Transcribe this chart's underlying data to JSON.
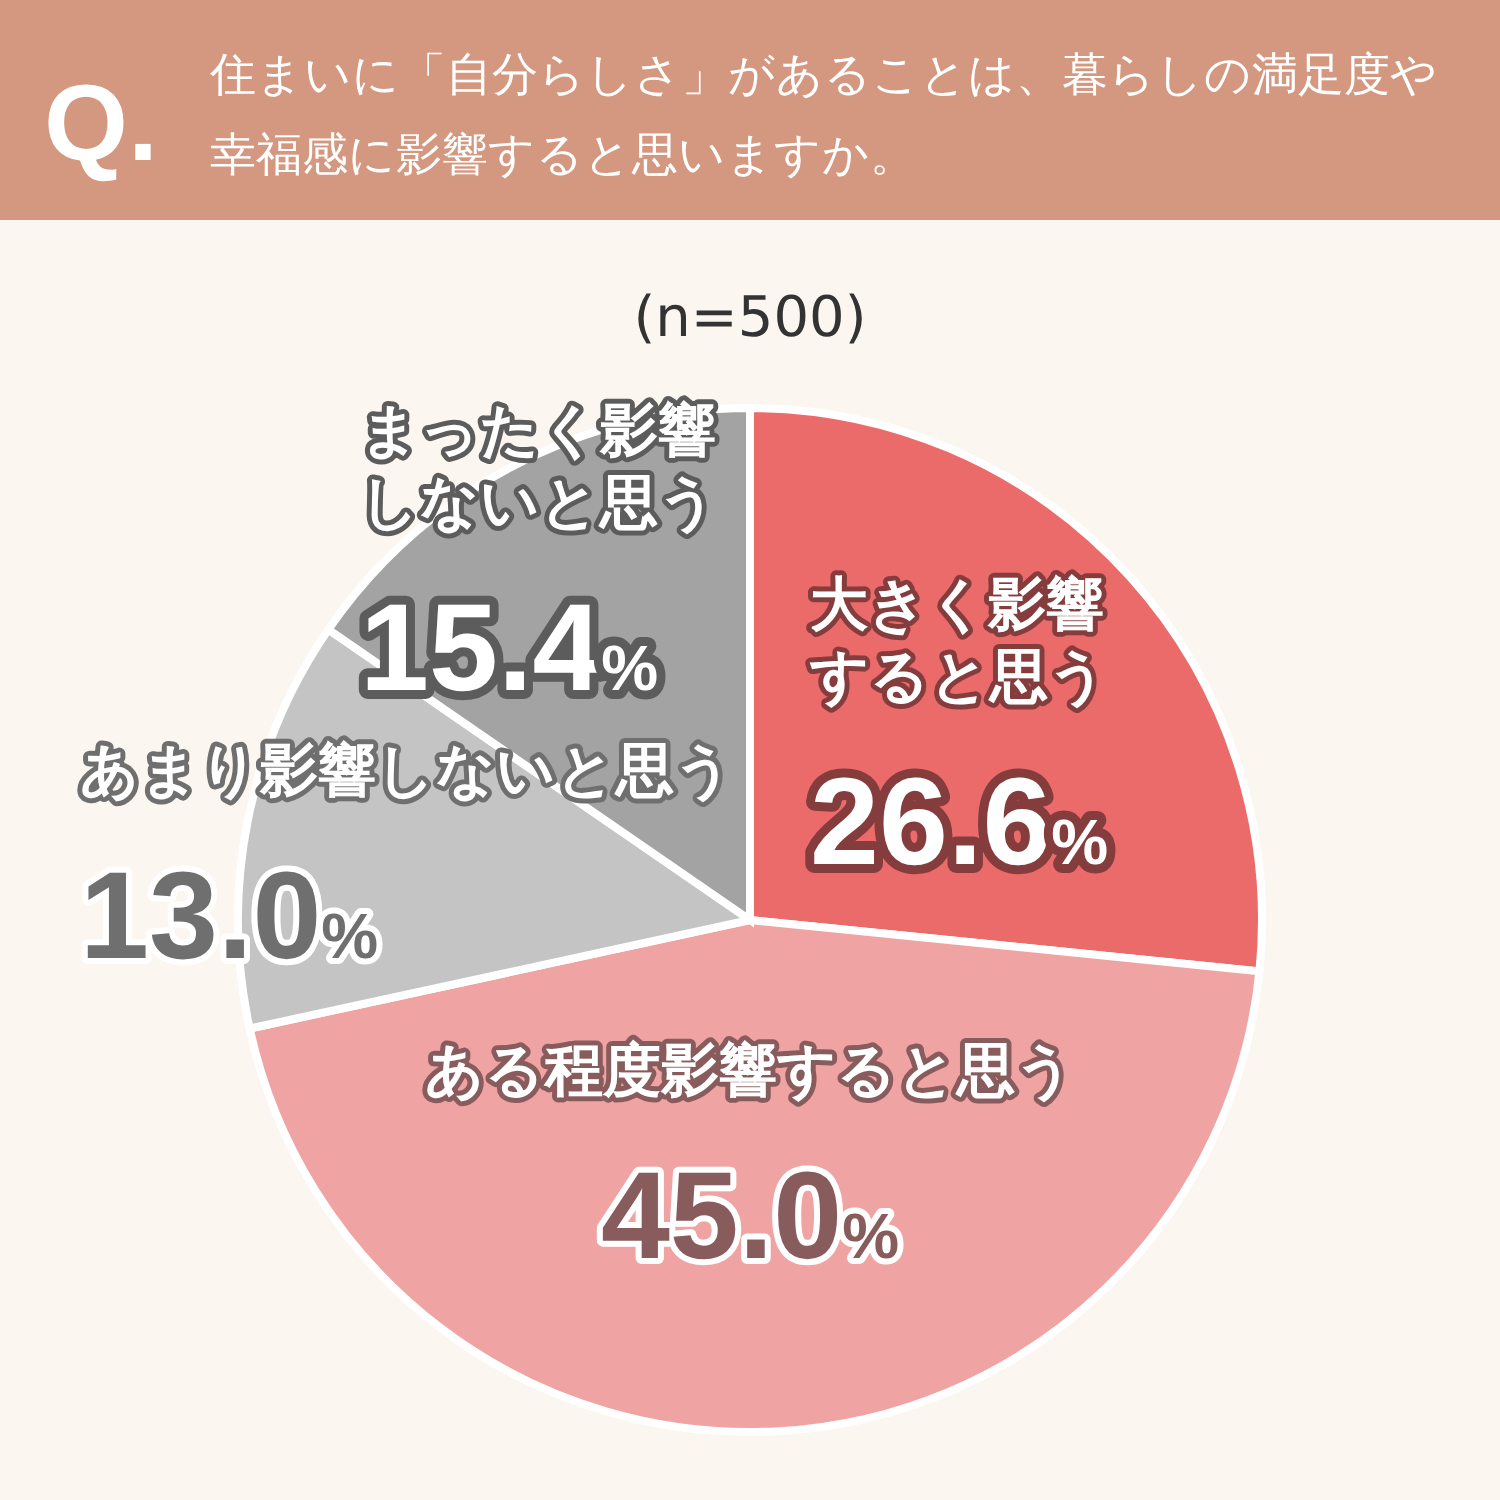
{
  "chart_data": {
    "type": "pie",
    "title": "住まいに「自分らしさ」があることは、暮らしの満足度や幸福感に影響すると思いますか。",
    "subtitle": "(n=500)",
    "annotations": [
      "Q."
    ],
    "categories": [
      "大きく影響すると思う",
      "ある程度影響すると思う",
      "あまり影響しないと思う",
      "まったく影響しないと思う"
    ],
    "values": [
      26.6,
      45.0,
      13.0,
      15.4
    ],
    "colors": [
      "#eb6b6b",
      "#f0a3a3",
      "#c4c4c4",
      "#a3a3a3"
    ],
    "value_labels": [
      "26.6%",
      "45.0%",
      "13.0%",
      "15.4%"
    ]
  }
}
